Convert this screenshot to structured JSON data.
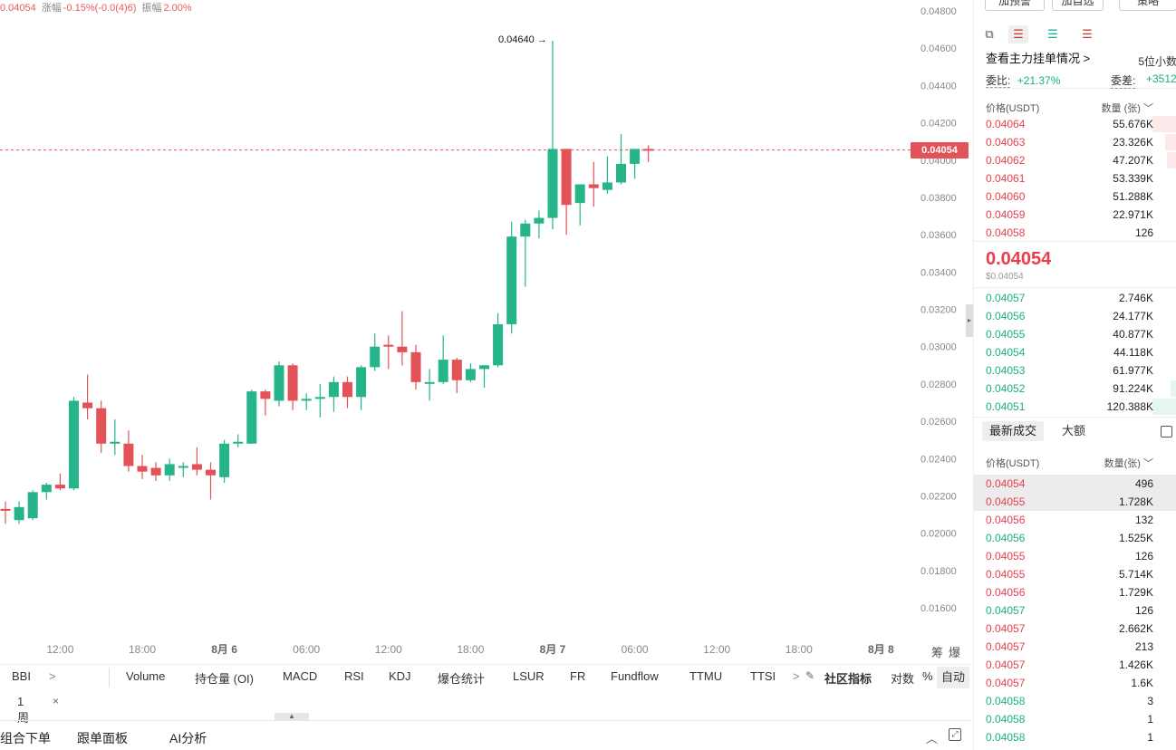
{
  "top_summary": {
    "price": "0.04054",
    "change_label": "涨幅",
    "change_value": "-0.15%(-0.0(4)6)",
    "amplitude_label": "振幅",
    "amplitude_value": "2.00%"
  },
  "chart_data": {
    "type": "candlestick",
    "y_ticks": [
      "0.04800",
      "0.04600",
      "0.04400",
      "0.04200",
      "0.04000",
      "0.03800",
      "0.03600",
      "0.03400",
      "0.03200",
      "0.03000",
      "0.02800",
      "0.02600",
      "0.02400",
      "0.02200",
      "0.02000",
      "0.01800",
      "0.01600"
    ],
    "ylim": [
      0.0148,
      0.049
    ],
    "x_ticks": [
      {
        "label": "12:00",
        "bold": false
      },
      {
        "label": "18:00",
        "bold": false
      },
      {
        "label": "8月 6",
        "bold": true
      },
      {
        "label": "06:00",
        "bold": false
      },
      {
        "label": "12:00",
        "bold": false
      },
      {
        "label": "18:00",
        "bold": false
      },
      {
        "label": "8月 7",
        "bold": true
      },
      {
        "label": "06:00",
        "bold": false
      },
      {
        "label": "12:00",
        "bold": false
      },
      {
        "label": "18:00",
        "bold": false
      },
      {
        "label": "8月 8",
        "bold": true
      }
    ],
    "x_tick_candle_index": [
      4,
      10,
      16,
      22,
      28,
      34,
      40,
      46,
      52,
      58,
      64
    ],
    "current_price": 0.04054,
    "current_price_label": "0.04054",
    "max_label": "0.04640",
    "max_candle_index": 40,
    "candles": [
      {
        "o": 0.0213,
        "h": 0.0217,
        "l": 0.0205,
        "c": 0.0212
      },
      {
        "o": 0.0207,
        "h": 0.0217,
        "l": 0.0205,
        "c": 0.0214
      },
      {
        "o": 0.0208,
        "h": 0.0223,
        "l": 0.0207,
        "c": 0.0222
      },
      {
        "o": 0.0222,
        "h": 0.0227,
        "l": 0.0218,
        "c": 0.0226
      },
      {
        "o": 0.0226,
        "h": 0.0232,
        "l": 0.0223,
        "c": 0.0224
      },
      {
        "o": 0.0224,
        "h": 0.0273,
        "l": 0.0223,
        "c": 0.0271
      },
      {
        "o": 0.027,
        "h": 0.0285,
        "l": 0.0261,
        "c": 0.0267
      },
      {
        "o": 0.0267,
        "h": 0.0271,
        "l": 0.0243,
        "c": 0.0248
      },
      {
        "o": 0.0248,
        "h": 0.0261,
        "l": 0.0242,
        "c": 0.0249
      },
      {
        "o": 0.0248,
        "h": 0.0255,
        "l": 0.0233,
        "c": 0.0236
      },
      {
        "o": 0.0236,
        "h": 0.0242,
        "l": 0.0229,
        "c": 0.0233
      },
      {
        "o": 0.0235,
        "h": 0.0238,
        "l": 0.0228,
        "c": 0.0231
      },
      {
        "o": 0.0231,
        "h": 0.024,
        "l": 0.0228,
        "c": 0.0237
      },
      {
        "o": 0.0236,
        "h": 0.0238,
        "l": 0.023,
        "c": 0.0236
      },
      {
        "o": 0.0237,
        "h": 0.0246,
        "l": 0.0231,
        "c": 0.0234
      },
      {
        "o": 0.0234,
        "h": 0.0238,
        "l": 0.0218,
        "c": 0.0231
      },
      {
        "o": 0.023,
        "h": 0.025,
        "l": 0.0227,
        "c": 0.0248
      },
      {
        "o": 0.0248,
        "h": 0.0253,
        "l": 0.0246,
        "c": 0.0249
      },
      {
        "o": 0.0248,
        "h": 0.0277,
        "l": 0.0248,
        "c": 0.0276
      },
      {
        "o": 0.0276,
        "h": 0.0277,
        "l": 0.0263,
        "c": 0.0272
      },
      {
        "o": 0.0271,
        "h": 0.0292,
        "l": 0.0268,
        "c": 0.029
      },
      {
        "o": 0.029,
        "h": 0.0291,
        "l": 0.0266,
        "c": 0.0271
      },
      {
        "o": 0.0271,
        "h": 0.0275,
        "l": 0.0266,
        "c": 0.0272
      },
      {
        "o": 0.0272,
        "h": 0.028,
        "l": 0.0262,
        "c": 0.0273
      },
      {
        "o": 0.0273,
        "h": 0.0284,
        "l": 0.0265,
        "c": 0.0281
      },
      {
        "o": 0.0281,
        "h": 0.0284,
        "l": 0.0267,
        "c": 0.0273
      },
      {
        "o": 0.0273,
        "h": 0.029,
        "l": 0.0266,
        "c": 0.0289
      },
      {
        "o": 0.0289,
        "h": 0.0307,
        "l": 0.0287,
        "c": 0.03
      },
      {
        "o": 0.0301,
        "h": 0.0306,
        "l": 0.0288,
        "c": 0.03
      },
      {
        "o": 0.03,
        "h": 0.0319,
        "l": 0.029,
        "c": 0.0297
      },
      {
        "o": 0.0297,
        "h": 0.0301,
        "l": 0.0277,
        "c": 0.0281
      },
      {
        "o": 0.0281,
        "h": 0.0288,
        "l": 0.0271,
        "c": 0.0281
      },
      {
        "o": 0.0281,
        "h": 0.0306,
        "l": 0.028,
        "c": 0.0293
      },
      {
        "o": 0.0293,
        "h": 0.0294,
        "l": 0.0275,
        "c": 0.0282
      },
      {
        "o": 0.0282,
        "h": 0.0291,
        "l": 0.0281,
        "c": 0.0288
      },
      {
        "o": 0.0288,
        "h": 0.029,
        "l": 0.0278,
        "c": 0.029
      },
      {
        "o": 0.029,
        "h": 0.0318,
        "l": 0.0289,
        "c": 0.0312
      },
      {
        "o": 0.0312,
        "h": 0.0367,
        "l": 0.0307,
        "c": 0.0359
      },
      {
        "o": 0.0359,
        "h": 0.0368,
        "l": 0.0332,
        "c": 0.0366
      },
      {
        "o": 0.0366,
        "h": 0.0373,
        "l": 0.0358,
        "c": 0.0369
      },
      {
        "o": 0.0369,
        "h": 0.0464,
        "l": 0.0363,
        "c": 0.0406
      },
      {
        "o": 0.0406,
        "h": 0.0406,
        "l": 0.036,
        "c": 0.0376
      },
      {
        "o": 0.0377,
        "h": 0.0387,
        "l": 0.0365,
        "c": 0.0387
      },
      {
        "o": 0.0387,
        "h": 0.0399,
        "l": 0.0375,
        "c": 0.0385
      },
      {
        "o": 0.0384,
        "h": 0.0402,
        "l": 0.0382,
        "c": 0.0388
      },
      {
        "o": 0.0388,
        "h": 0.0414,
        "l": 0.0387,
        "c": 0.0398
      },
      {
        "o": 0.0398,
        "h": 0.0406,
        "l": 0.039,
        "c": 0.0406
      },
      {
        "o": 0.0406,
        "h": 0.0408,
        "l": 0.0399,
        "c": 0.0405
      }
    ]
  },
  "indicators": {
    "bbi": "BBI",
    "bbi_arrow": ">",
    "items": [
      "Volume",
      "持仓量 (OI)",
      "MACD",
      "RSI",
      "KDJ",
      "爆仓统计",
      "LSUR",
      "FR",
      "Fundflow",
      "TTMU",
      "TTSI"
    ],
    "more_arrow": ">",
    "community": "社区指标",
    "log": "对数",
    "percent": "%",
    "auto": "自动"
  },
  "corner": {
    "left": "筹",
    "right": "爆"
  },
  "period": {
    "label": "1周",
    "close": "×"
  },
  "bottom_bar": {
    "items": [
      "组合下单",
      "跟单面板",
      "AI分析"
    ]
  },
  "panel": {
    "top_buttons": [
      "加预警",
      "加自选",
      "策略"
    ],
    "decimals": "5位小数",
    "main_orders": "查看主力挂单情况",
    "main_orders_arrow": ">",
    "ratio_label": "委比:",
    "ratio_value": "+21.37%",
    "diff_label": "委差:",
    "diff_value": "+3512",
    "book_header": {
      "price": "价格(USDT)",
      "qty": "数量 (张)"
    },
    "asks": [
      {
        "price": "0.04064",
        "qty": "55.676K",
        "depth": 0.12
      },
      {
        "price": "0.04063",
        "qty": "23.326K",
        "depth": 0.06
      },
      {
        "price": "0.04062",
        "qty": "47.207K",
        "depth": 0.05
      },
      {
        "price": "0.04061",
        "qty": "53.339K",
        "depth": 0
      },
      {
        "price": "0.04060",
        "qty": "51.288K",
        "depth": 0
      },
      {
        "price": "0.04059",
        "qty": "22.971K",
        "depth": 0
      },
      {
        "price": "0.04058",
        "qty": "126",
        "depth": 0
      }
    ],
    "last_price": "0.04054",
    "last_usd": "$0.04054",
    "bids": [
      {
        "price": "0.04057",
        "qty": "2.746K",
        "depth": 0
      },
      {
        "price": "0.04056",
        "qty": "24.177K",
        "depth": 0
      },
      {
        "price": "0.04055",
        "qty": "40.877K",
        "depth": 0
      },
      {
        "price": "0.04054",
        "qty": "44.118K",
        "depth": 0
      },
      {
        "price": "0.04053",
        "qty": "61.977K",
        "depth": 0
      },
      {
        "price": "0.04052",
        "qty": "91.224K",
        "depth": 0.03
      },
      {
        "price": "0.04051",
        "qty": "120.388K",
        "depth": 0.12
      }
    ],
    "trades_tabs": {
      "latest": "最新成交",
      "big": "大额"
    },
    "trades_header": {
      "price": "价格(USDT)",
      "qty": "数量(张)"
    },
    "trades": [
      {
        "price": "0.04054",
        "qty": "496",
        "side": "sell",
        "hl": true
      },
      {
        "price": "0.04055",
        "qty": "1.728K",
        "side": "sell",
        "hl": true
      },
      {
        "price": "0.04056",
        "qty": "132",
        "side": "sell",
        "hl": false
      },
      {
        "price": "0.04056",
        "qty": "1.525K",
        "side": "buy",
        "hl": false
      },
      {
        "price": "0.04055",
        "qty": "126",
        "side": "sell",
        "hl": false
      },
      {
        "price": "0.04055",
        "qty": "5.714K",
        "side": "sell",
        "hl": false
      },
      {
        "price": "0.04056",
        "qty": "1.729K",
        "side": "sell",
        "hl": false
      },
      {
        "price": "0.04057",
        "qty": "126",
        "side": "buy",
        "hl": false
      },
      {
        "price": "0.04057",
        "qty": "2.662K",
        "side": "sell",
        "hl": false
      },
      {
        "price": "0.04057",
        "qty": "213",
        "side": "sell",
        "hl": false
      },
      {
        "price": "0.04057",
        "qty": "1.426K",
        "side": "sell",
        "hl": false
      },
      {
        "price": "0.04057",
        "qty": "1.6K",
        "side": "sell",
        "hl": false
      },
      {
        "price": "0.04058",
        "qty": "3",
        "side": "buy",
        "hl": false
      },
      {
        "price": "0.04058",
        "qty": "1",
        "side": "buy",
        "hl": false
      },
      {
        "price": "0.04058",
        "qty": "1",
        "side": "buy",
        "hl": false
      }
    ]
  },
  "colors": {
    "up": "#26b58a",
    "down": "#e35256",
    "accent": "#16b379"
  }
}
